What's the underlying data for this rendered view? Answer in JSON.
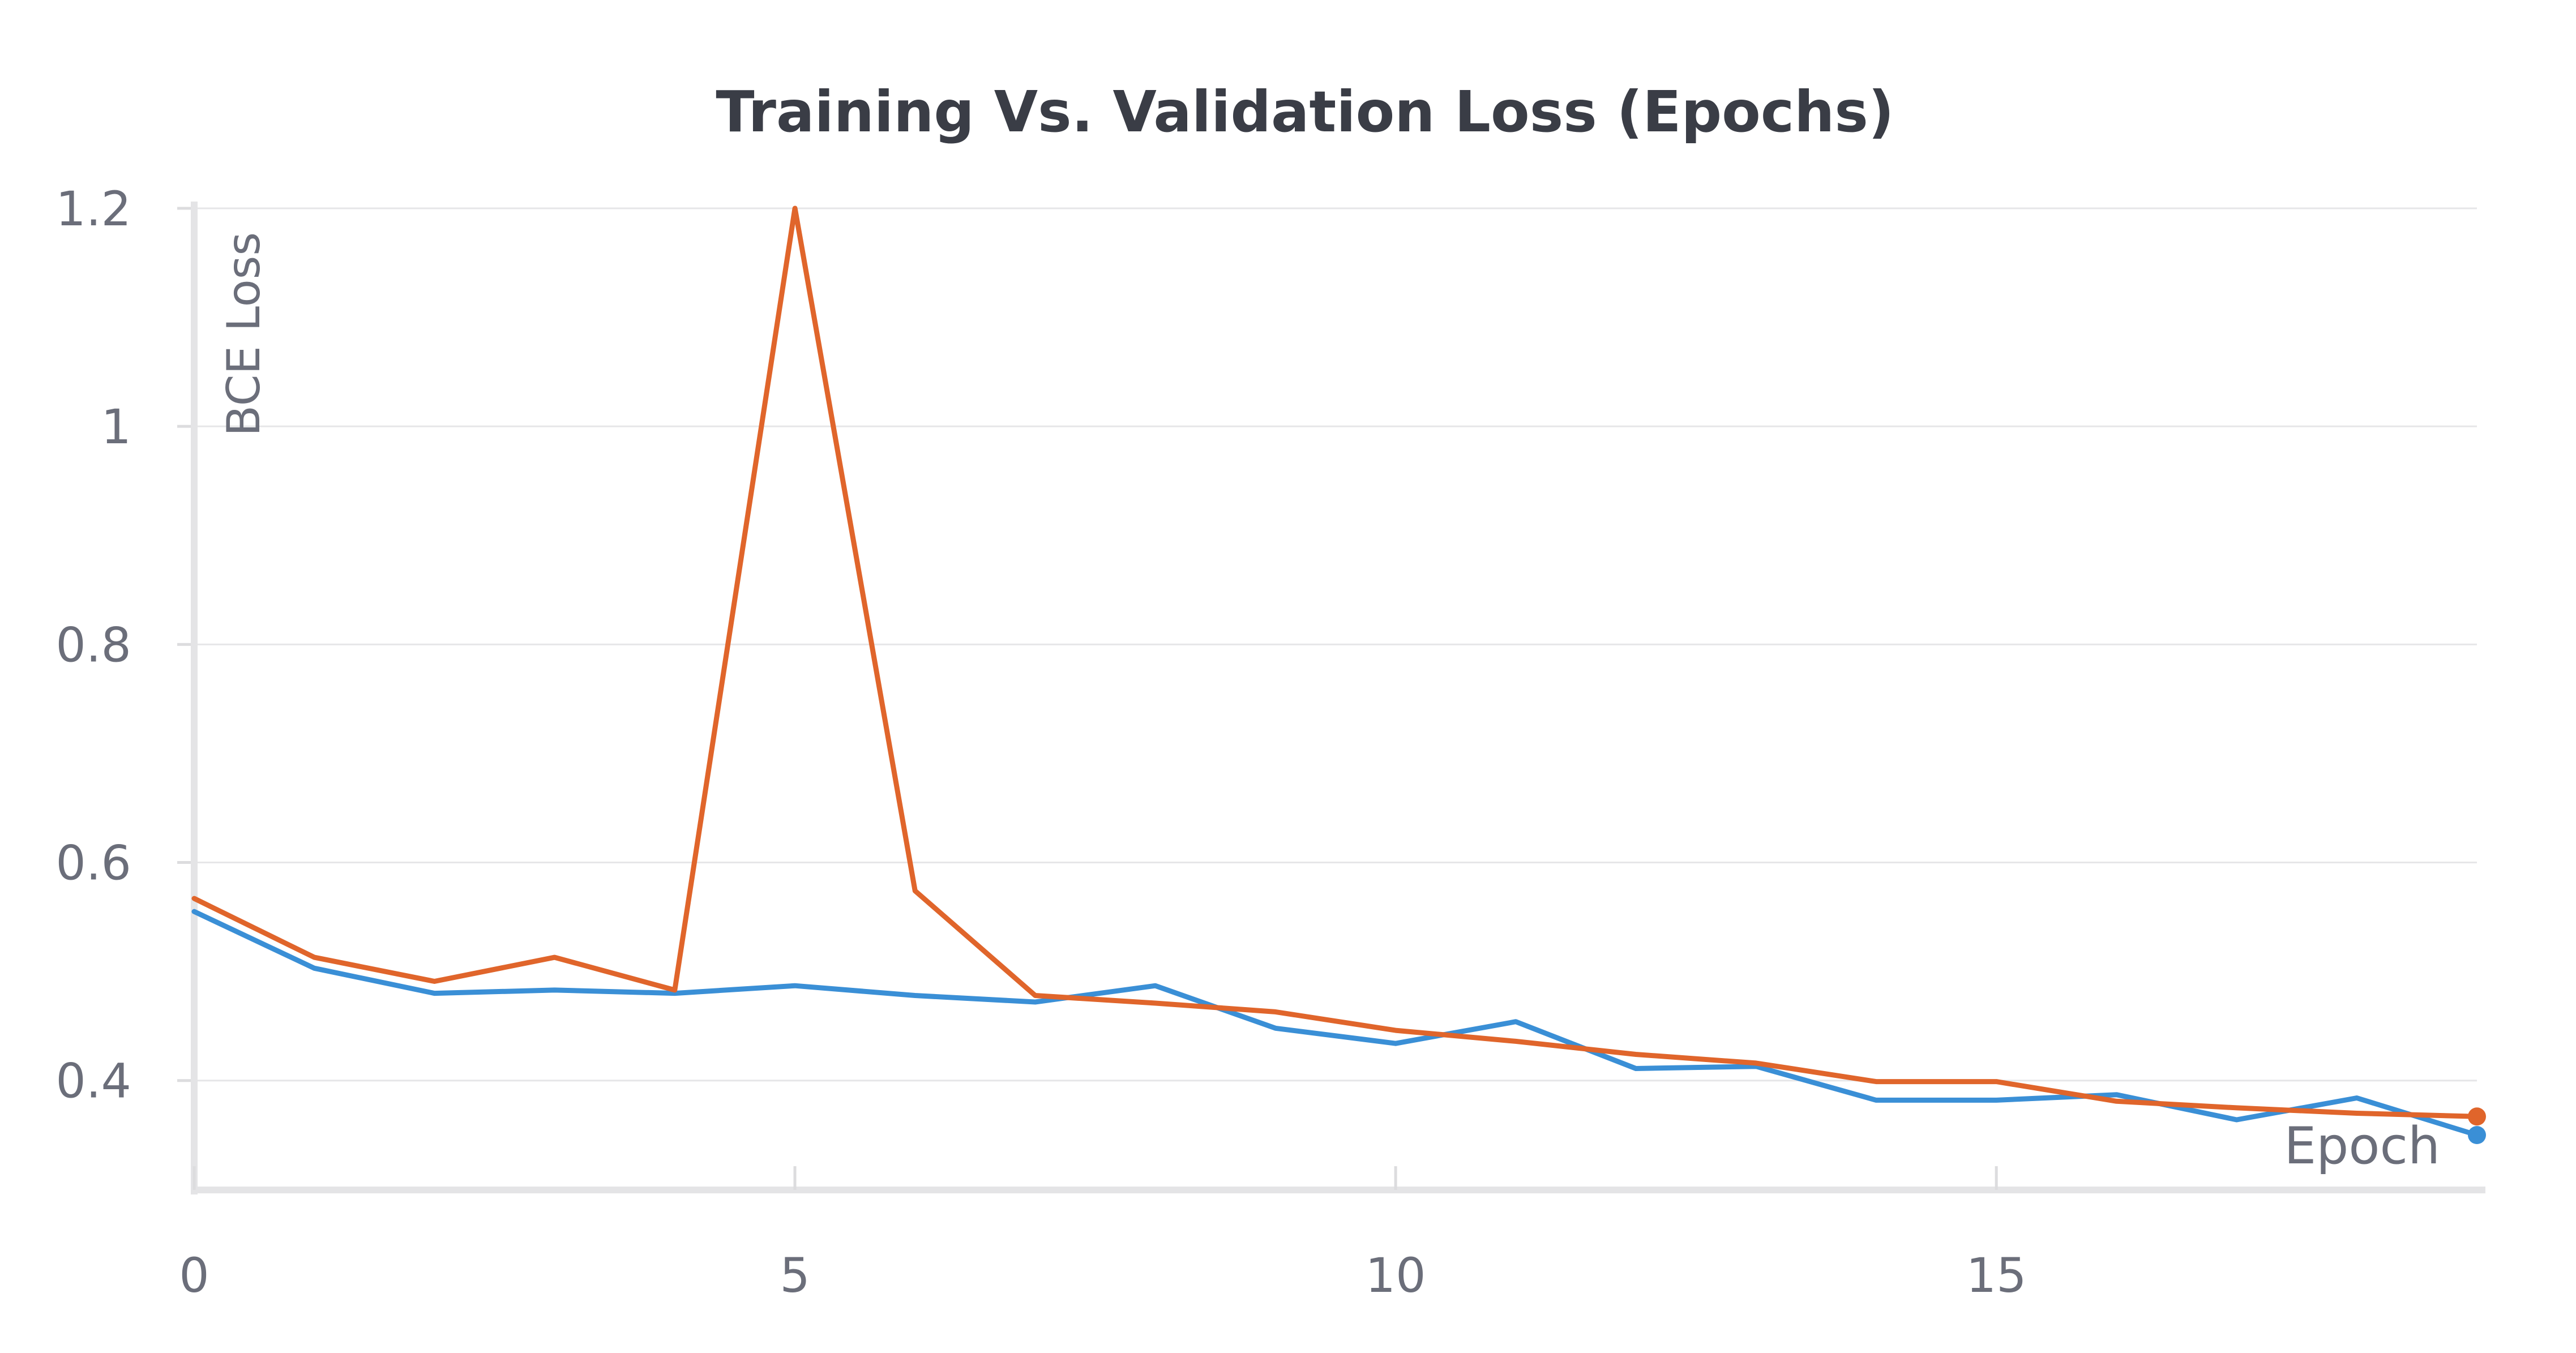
{
  "chart_data": {
    "type": "line",
    "title": "Training Vs. Validation Loss (Epochs)",
    "xlabel": "Epoch",
    "ylabel": "BCE Loss",
    "xlim": [
      0,
      19
    ],
    "ylim": [
      0.35,
      1.2
    ],
    "xticks": [
      0,
      5,
      10,
      15
    ],
    "yticks": [
      0.4,
      0.6,
      0.8,
      1.0,
      1.2
    ],
    "ytick_labels": [
      "0.4",
      "0.6",
      "0.8",
      "1",
      "1.2"
    ],
    "grid": true,
    "legend": "none",
    "x": [
      0,
      1,
      2,
      3,
      4,
      5,
      6,
      7,
      8,
      9,
      10,
      11,
      12,
      13,
      14,
      15,
      16,
      17,
      18,
      19
    ],
    "series": [
      {
        "color": "#3a8fd6",
        "values": [
          0.555,
          0.503,
          0.48,
          0.483,
          0.48,
          0.487,
          0.478,
          0.472,
          0.487,
          0.448,
          0.434,
          0.454,
          0.411,
          0.413,
          0.382,
          0.382,
          0.387,
          0.364,
          0.384,
          0.35
        ]
      },
      {
        "color": "#e0652b",
        "values": [
          0.567,
          0.513,
          0.491,
          0.513,
          0.483,
          1.2,
          0.574,
          0.478,
          0.471,
          0.463,
          0.446,
          0.436,
          0.424,
          0.416,
          0.399,
          0.399,
          0.381,
          0.375,
          0.37,
          0.367
        ]
      }
    ]
  }
}
